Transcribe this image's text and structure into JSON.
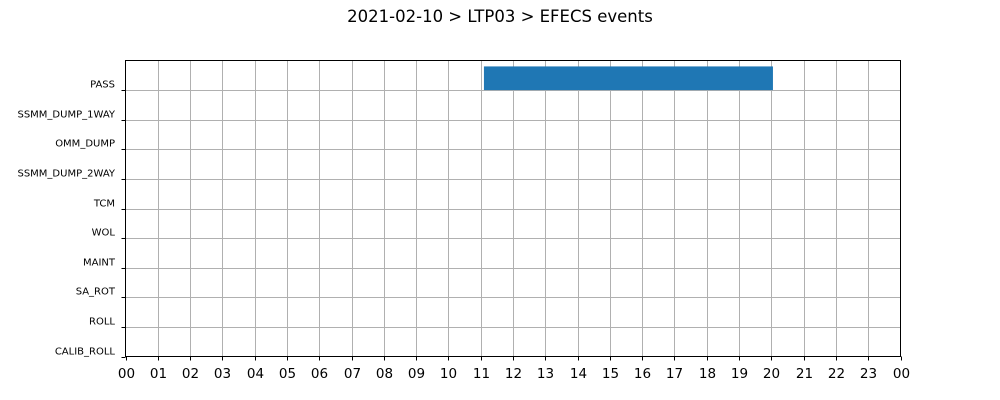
{
  "chart_data": {
    "type": "bar",
    "orientation": "horizontal-timeline",
    "title": "2021-02-10 > LTP03 > EFECS events",
    "xlabel": "",
    "ylabel": "",
    "xlim": [
      0,
      24
    ],
    "x_tick_labels": [
      "00",
      "01",
      "02",
      "03",
      "04",
      "05",
      "06",
      "07",
      "08",
      "09",
      "10",
      "11",
      "12",
      "13",
      "14",
      "15",
      "16",
      "17",
      "18",
      "19",
      "20",
      "21",
      "22",
      "23",
      "00"
    ],
    "categories": [
      "PASS",
      "SSMM_DUMP_1WAY",
      "OMM_DUMP",
      "SSMM_DUMP_2WAY",
      "TCM",
      "WOL",
      "MAINT",
      "SA_ROT",
      "ROLL",
      "CALIB_ROLL"
    ],
    "grid": true,
    "bar_color": "#1f77b4",
    "events": [
      {
        "category": "PASS",
        "start": 11.1,
        "end": 20.05
      }
    ]
  }
}
